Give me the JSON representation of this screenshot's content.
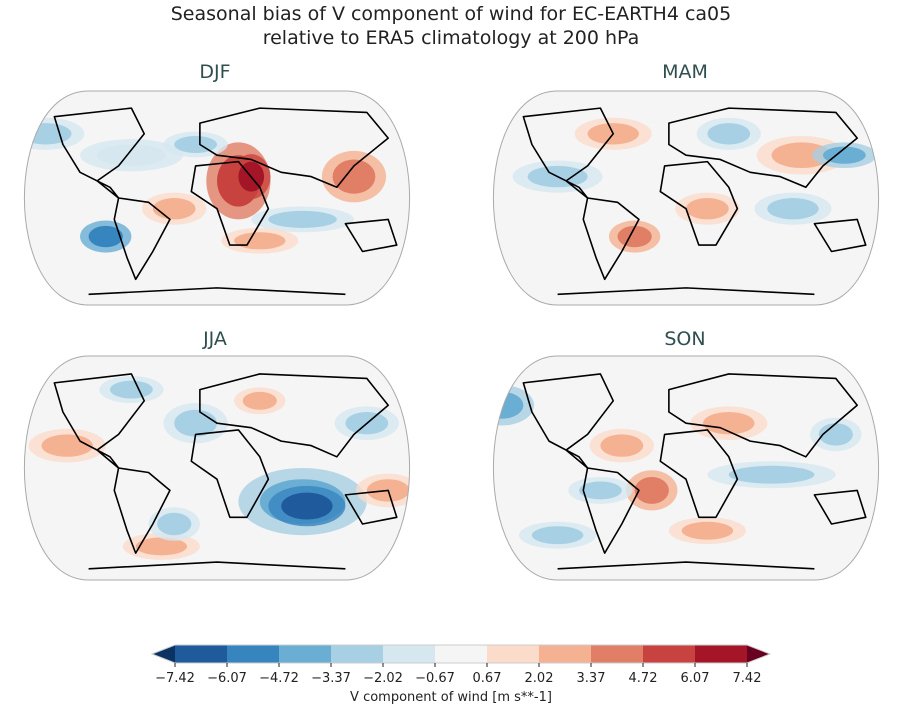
{
  "title_line1": "Seasonal bias of V component of wind for EC-EARTH4 ca05",
  "title_line2": "relative to ERA5 climatology at 200 hPa",
  "panels": [
    {
      "label": "DJF"
    },
    {
      "label": "MAM"
    },
    {
      "label": "JJA"
    },
    {
      "label": "SON"
    }
  ],
  "colorbar": {
    "label": "V component of wind [m s**-1]",
    "ticks": [
      "−7.42",
      "−6.07",
      "−4.72",
      "−3.37",
      "−2.02",
      "−0.67",
      "0.67",
      "2.02",
      "3.37",
      "4.72",
      "6.07",
      "7.42"
    ],
    "colors": [
      "#1f5a9c",
      "#3785bf",
      "#6aaed4",
      "#a8d0e4",
      "#d6e7f0",
      "#f5f5f5",
      "#fbdcca",
      "#f5b292",
      "#e17e66",
      "#c8433f",
      "#a51528"
    ],
    "under_color": "#0b3263",
    "over_color": "#6a0020",
    "extend": "both"
  }
}
